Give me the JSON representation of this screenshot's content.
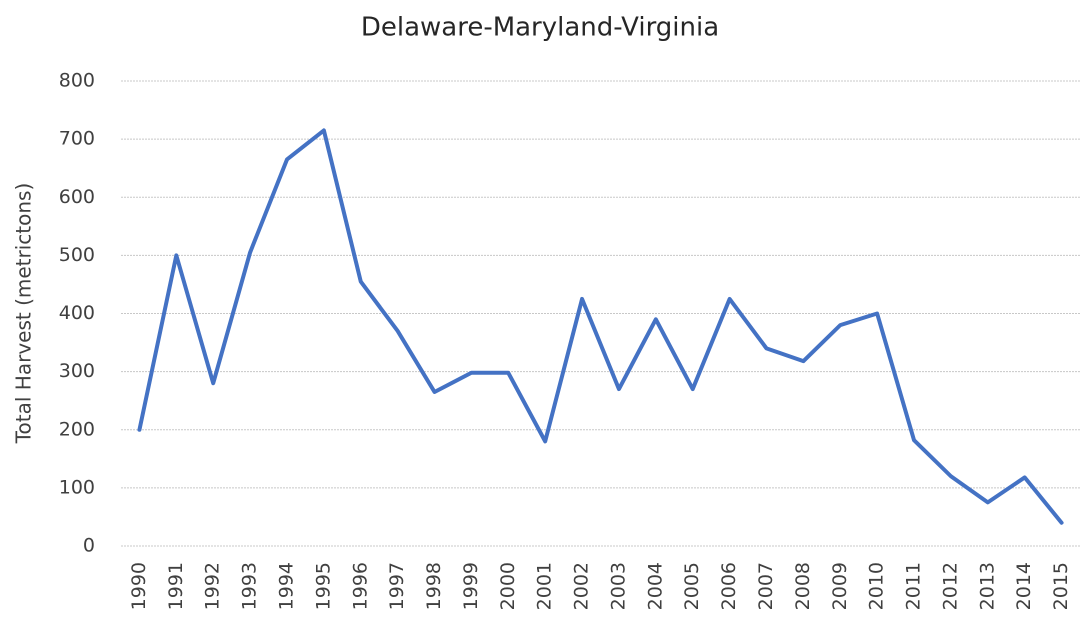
{
  "chart_data": {
    "type": "line",
    "title": "Delaware-Maryland-Virginia",
    "y_label": "Total Harvest (metrictons)",
    "categories": [
      "1990",
      "1991",
      "1992",
      "1993",
      "1994",
      "1995",
      "1996",
      "1997",
      "1998",
      "1999",
      "2000",
      "2001",
      "2002",
      "2003",
      "2004",
      "2005",
      "2006",
      "2007",
      "2008",
      "2009",
      "2010",
      "2011",
      "2012",
      "2013",
      "2014",
      "2015"
    ],
    "series": [
      {
        "name": "Total Harvest",
        "color": "#4472c4",
        "values": [
          200,
          500,
          280,
          505,
          665,
          715,
          455,
          370,
          265,
          298,
          298,
          180,
          425,
          270,
          390,
          270,
          425,
          340,
          318,
          380,
          400,
          182,
          120,
          75,
          118,
          40
        ]
      }
    ],
    "ylim": [
      0,
      800
    ],
    "yticks": [
      0,
      100,
      200,
      300,
      400,
      500,
      600,
      700,
      800
    ],
    "grid": true
  }
}
